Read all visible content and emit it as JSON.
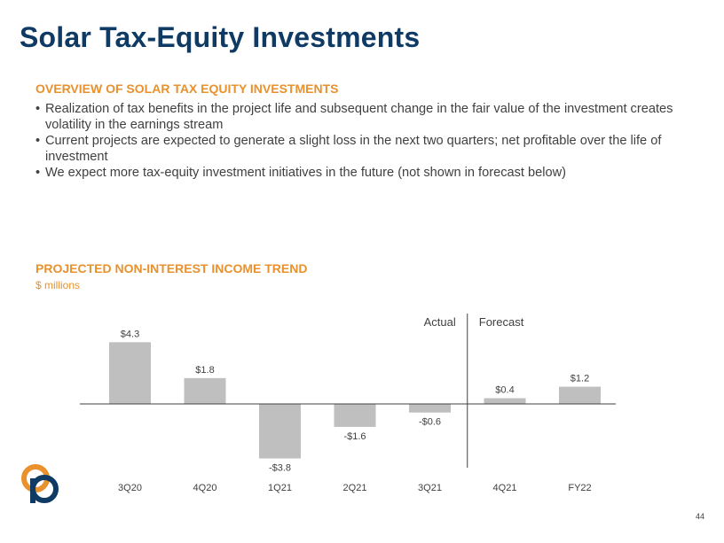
{
  "title": "Solar Tax-Equity Investments",
  "overview": {
    "heading": "OVERVIEW OF SOLAR TAX EQUITY INVESTMENTS",
    "bullets": [
      "Realization of tax benefits in the project life and subsequent change in the fair value of the investment creates volatility in the earnings stream",
      "Current projects are expected to generate a slight loss in the next two quarters; net profitable over the life of investment",
      "We expect more tax-equity investment initiatives in the future (not shown in forecast below)"
    ]
  },
  "trend": {
    "heading": "PROJECTED NON-INTEREST INCOME TREND",
    "unit": "$ millions"
  },
  "chart_data": {
    "type": "bar",
    "title": "",
    "categories": [
      "3Q20",
      "4Q20",
      "1Q21",
      "2Q21",
      "3Q21",
      "4Q21",
      "FY22"
    ],
    "values": [
      4.3,
      1.8,
      -3.8,
      -1.6,
      -0.6,
      0.4,
      1.2
    ],
    "value_labels": [
      "$4.3",
      "$1.8",
      "-$3.8",
      "-$1.6",
      "-$0.6",
      "$0.4",
      "$1.2"
    ],
    "annotations": [
      "Actual",
      "Forecast"
    ],
    "forecast_divider_after": "3Q21",
    "xlabel": "",
    "ylabel": "",
    "grid": false,
    "bar_color": "#bfbfbf"
  },
  "page_number": "44"
}
